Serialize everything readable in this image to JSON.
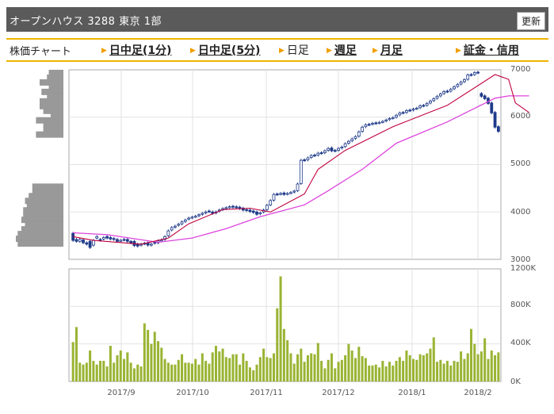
{
  "header": {
    "title": "オープンハウス  3288  東京 1部",
    "refresh_label": "更新"
  },
  "nav": {
    "label": "株価チャート",
    "items": [
      {
        "label": "日中足(1分)",
        "style": "link"
      },
      {
        "label": "日中足(5分)",
        "style": "link"
      },
      {
        "label": "日足",
        "style": "plain"
      },
      {
        "label": "週足",
        "style": "link"
      },
      {
        "label": "月足",
        "style": "link"
      },
      {
        "label": "証金・信用",
        "style": "link"
      }
    ]
  },
  "chart_data": {
    "type": "candlestick",
    "x_labels": [
      "2017/9",
      "2017/10",
      "2017/11",
      "2017/12",
      "2018/1",
      "2018/2"
    ],
    "price_ticks": [
      "7000",
      "6000",
      "5000",
      "4000",
      "3000"
    ],
    "price_range": [
      3000,
      7000
    ],
    "volume_ticks": [
      "1200K",
      "800K",
      "400K",
      "0K"
    ],
    "volume_range": [
      0,
      1200000
    ],
    "grid": true,
    "colors": {
      "up": "#ffffff",
      "down": "#1e3a8a",
      "short_ma": "#c0003c",
      "long_ma": "#dd44dd",
      "volume": "#99b433",
      "price_volume": "#999999"
    },
    "price_key": [
      [
        3550,
        3420,
        3380,
        3410,
        3350,
        3380,
        3300,
        3450,
        3420,
        3430,
        3480,
        3460,
        3440,
        3420,
        3400,
        3420,
        3420,
        3380,
        3380,
        3320,
        3300,
        3340,
        3350,
        3300,
        3360,
        3350,
        3400,
        3420,
        3500,
        3620,
        3680,
        3720,
        3750,
        3800,
        3850,
        3880,
        3900,
        3920,
        3950,
        3980,
        4020,
        4000,
        3980,
        4020,
        4050,
        4080,
        4100,
        4120,
        4110,
        4100,
        4080,
        4050,
        4040,
        4020,
        4000,
        3960,
        4000,
        4050,
        4150,
        4250,
        4380,
        4380,
        4400,
        4380,
        4400,
        4420,
        4450,
        4600,
        5100,
        5100,
        5150,
        5200,
        5200,
        5250,
        5250,
        5300,
        5350,
        5300,
        5300,
        5350,
        5380,
        5450,
        5500,
        5550,
        5600,
        5700,
        5800,
        5850,
        5850,
        5880,
        5880,
        5900,
        5920,
        5950,
        5980,
        6000,
        6050,
        6100,
        6100,
        6150,
        6150,
        6180,
        6200,
        6250,
        6250,
        6300,
        6350,
        6400,
        6450,
        6500,
        6550,
        6550,
        6600,
        6650,
        6700,
        6750,
        6800,
        6900,
        6900,
        6950,
        6500,
        6450,
        6400,
        6300,
        6100,
        5800,
        6100,
        6050,
        6000
      ],
      [
        3400,
        3380,
        3420,
        3350,
        3320,
        3250,
        3400,
        3480,
        3410,
        3460,
        3450,
        3430,
        3420,
        3380,
        3400,
        3410,
        3380,
        3350,
        3290,
        3280,
        3320,
        3330,
        3300,
        3320,
        3340,
        3390,
        3410,
        3480,
        3600,
        3670,
        3700,
        3740,
        3790,
        3830,
        3870,
        3890,
        3910,
        3940,
        3970,
        4000,
        4010,
        3970,
        4000,
        4040,
        4070,
        4090,
        4110,
        4100,
        4090,
        4070,
        4040,
        4030,
        4010,
        3990,
        3950,
        3980,
        4040,
        4140,
        4240,
        4370,
        4370,
        4390,
        4370,
        4390,
        4410,
        4440,
        4590,
        5090,
        5090,
        5140,
        5190,
        5190,
        5240,
        5240,
        5290,
        5340,
        5290,
        5290,
        5340,
        5370,
        5440,
        5490,
        5540,
        5590,
        5690,
        5790,
        5840,
        5840,
        5870,
        5870,
        5890,
        5910,
        5940,
        5970,
        5990,
        6040,
        6090,
        6090,
        6140,
        6140,
        6170,
        6190,
        6240,
        6240,
        6290,
        6340,
        6390,
        6440,
        6490,
        6540,
        6540,
        6590,
        6640,
        6690,
        6740,
        6790,
        6890,
        6890,
        6940,
        6940,
        6440,
        6390,
        6290,
        6090,
        5790,
        5700,
        6040,
        5990,
        6000
      ]
    ],
    "short_ma_key": [
      [
        0,
        3480
      ],
      [
        6,
        3400
      ],
      [
        20,
        3320
      ],
      [
        28,
        3450
      ],
      [
        34,
        3750
      ],
      [
        44,
        4050
      ],
      [
        52,
        4080
      ],
      [
        58,
        4000
      ],
      [
        68,
        4380
      ],
      [
        72,
        4900
      ],
      [
        80,
        5300
      ],
      [
        94,
        5800
      ],
      [
        110,
        6250
      ],
      [
        124,
        6900
      ],
      [
        128,
        6800
      ],
      [
        130,
        6300
      ],
      [
        134,
        6100
      ]
    ],
    "long_ma_key": [
      [
        0,
        3560
      ],
      [
        10,
        3520
      ],
      [
        25,
        3360
      ],
      [
        35,
        3450
      ],
      [
        45,
        3650
      ],
      [
        55,
        3900
      ],
      [
        68,
        4150
      ],
      [
        75,
        4450
      ],
      [
        85,
        4900
      ],
      [
        95,
        5450
      ],
      [
        110,
        5900
      ],
      [
        124,
        6400
      ],
      [
        128,
        6450
      ],
      [
        134,
        6450
      ]
    ],
    "volume_k": [
      420,
      580,
      200,
      180,
      200,
      330,
      220,
      180,
      220,
      220,
      160,
      380,
      200,
      280,
      330,
      240,
      310,
      200,
      140,
      180,
      160,
      620,
      550,
      400,
      530,
      430,
      360,
      240,
      200,
      180,
      180,
      230,
      290,
      200,
      200,
      190,
      240,
      180,
      300,
      220,
      190,
      310,
      380,
      320,
      350,
      260,
      250,
      290,
      290,
      180,
      300,
      220,
      150,
      120,
      180,
      260,
      350,
      260,
      250,
      300,
      780,
      1120,
      560,
      440,
      300,
      190,
      290,
      350,
      210,
      280,
      300,
      290,
      410,
      220,
      140,
      230,
      300,
      140,
      210,
      230,
      280,
      400,
      330,
      250,
      370,
      270,
      250,
      170,
      170,
      180,
      150,
      220,
      160,
      210,
      170,
      220,
      260,
      220,
      330,
      280,
      240,
      230,
      290,
      280,
      300,
      350,
      470,
      210,
      230,
      190,
      220,
      170,
      220,
      210,
      320,
      240,
      300,
      560,
      400,
      290,
      320,
      460,
      240,
      330,
      280,
      310
    ],
    "price_volume_bars": [
      {
        "price": 6900,
        "volume": 40
      },
      {
        "price": 6800,
        "volume": 45
      },
      {
        "price": 6700,
        "volume": 65
      },
      {
        "price": 6600,
        "volume": 40
      },
      {
        "price": 6500,
        "volume": 60
      },
      {
        "price": 6400,
        "volume": 45
      },
      {
        "price": 6300,
        "volume": 65
      },
      {
        "price": 6200,
        "volume": 65
      },
      {
        "price": 6100,
        "volume": 55
      },
      {
        "price": 6000,
        "volume": 35
      },
      {
        "price": 5900,
        "volume": 75
      },
      {
        "price": 5800,
        "volume": 55
      },
      {
        "price": 5700,
        "volume": 55
      },
      {
        "price": 5600,
        "volume": 75
      },
      {
        "price": 4500,
        "volume": 85
      },
      {
        "price": 4400,
        "volume": 85
      },
      {
        "price": 4300,
        "volume": 95
      },
      {
        "price": 4200,
        "volume": 105
      },
      {
        "price": 4100,
        "volume": 100
      },
      {
        "price": 4000,
        "volume": 110
      },
      {
        "price": 3900,
        "volume": 110
      },
      {
        "price": 3800,
        "volume": 115
      },
      {
        "price": 3700,
        "volume": 105
      },
      {
        "price": 3600,
        "volume": 115
      },
      {
        "price": 3500,
        "volume": 125
      },
      {
        "price": 3400,
        "volume": 130
      },
      {
        "price": 3300,
        "volume": 125
      }
    ]
  }
}
